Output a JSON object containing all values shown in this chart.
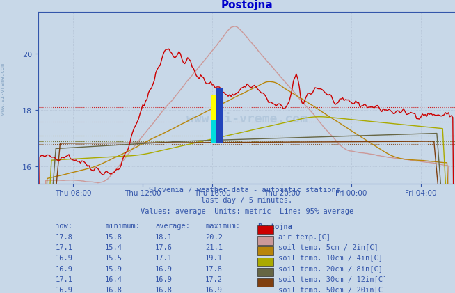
{
  "title": "Postojna",
  "title_color": "#0000cc",
  "bg_color": "#c8d8e8",
  "plot_bg_color": "#c8d8e8",
  "grid_color": "#aab8cc",
  "axis_color": "#3355aa",
  "text_color": "#3355aa",
  "subtitle1": "Slovenia / weather data - automatic stations.",
  "subtitle2": "last day / 5 minutes.",
  "subtitle3": "Values: average  Units: metric  Line: 95% average",
  "xlabel_ticks": [
    "Thu 08:00",
    "Thu 12:00",
    "Thu 16:00",
    "Thu 20:00",
    "Fri 00:00",
    "Fri 04:00"
  ],
  "tick_positions": [
    24,
    72,
    120,
    168,
    216,
    264
  ],
  "xlim": [
    0,
    288
  ],
  "ylim": [
    15.4,
    21.5
  ],
  "yticks": [
    16,
    18,
    20
  ],
  "legend_colors": [
    "#cc0000",
    "#cc9999",
    "#b8860b",
    "#aaaa00",
    "#666644",
    "#804010"
  ],
  "legend_labels": [
    "air temp.[C]",
    "soil temp. 5cm / 2in[C]",
    "soil temp. 10cm / 4in[C]",
    "soil temp. 20cm / 8in[C]",
    "soil temp. 30cm / 12in[C]",
    "soil temp. 50cm / 20in[C]"
  ],
  "legend_now": [
    17.8,
    17.1,
    16.9,
    16.9,
    17.1,
    16.9
  ],
  "legend_min": [
    15.8,
    15.4,
    15.5,
    15.9,
    16.4,
    16.8
  ],
  "legend_avg": [
    18.1,
    17.6,
    17.1,
    16.9,
    16.9,
    16.8
  ],
  "legend_max": [
    20.2,
    21.1,
    19.1,
    17.8,
    17.2,
    16.9
  ],
  "avg_values": [
    18.1,
    17.6,
    17.1,
    16.9,
    16.9,
    16.8
  ],
  "watermark": "www.si-vreme.com",
  "left_watermark": "www.si-vreme.com"
}
